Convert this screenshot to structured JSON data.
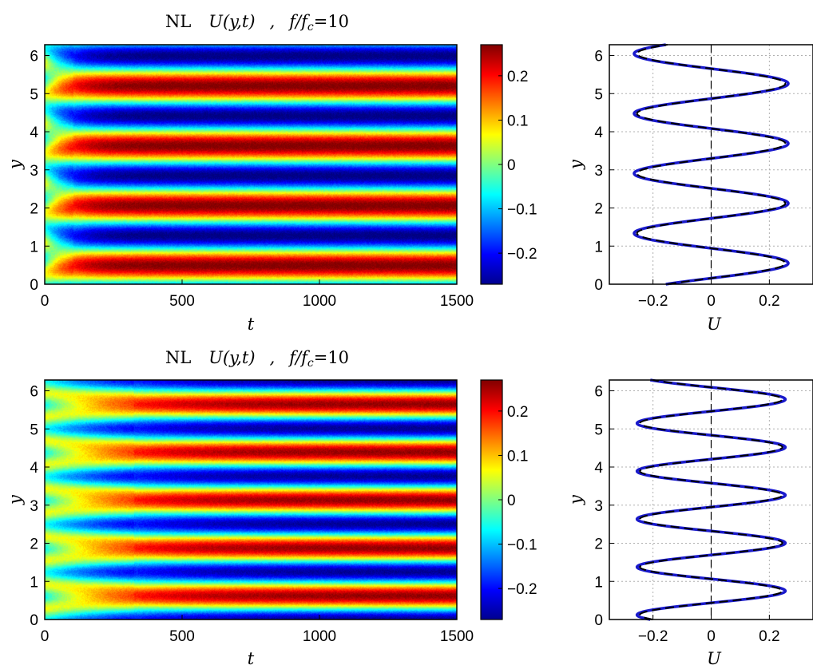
{
  "chart_data": [
    {
      "type": "heatmap",
      "title_prefix": "NL",
      "title": "U(y,t)",
      "title_sep": ",",
      "title_param": "f/f",
      "title_param_sub": "c",
      "title_value": "=10",
      "xlabel": "t",
      "ylabel": "y",
      "xlim": [
        0,
        1500
      ],
      "ylim": [
        0,
        6.2832
      ],
      "xticks": [
        "0",
        "500",
        "1000",
        "1500"
      ],
      "yticks": [
        "0",
        "1",
        "2",
        "3",
        "4",
        "5",
        "6"
      ],
      "colorbar": {
        "clim": [
          -0.27,
          0.27
        ],
        "ticks": [
          "0.2",
          "0.1",
          "0",
          "−0.1",
          "−0.2"
        ],
        "tick_values": [
          0.2,
          0.1,
          0,
          -0.1,
          -0.2
        ],
        "colormap": "jet"
      },
      "field": {
        "modes": 4,
        "amplitude": 0.27,
        "phase_peak_y": 0.5,
        "transient_end_t": 80
      }
    },
    {
      "type": "line",
      "xlabel": "U",
      "ylabel": "y",
      "xlim": [
        -0.35,
        0.35
      ],
      "ylim": [
        0,
        6.2832
      ],
      "xticks": [
        "−0.2",
        "0",
        "0.2"
      ],
      "yticks": [
        "0",
        "1",
        "2",
        "3",
        "4",
        "5",
        "6"
      ],
      "grid": true,
      "series": [
        {
          "style": "solid",
          "color": "#1a1acc",
          "amplitude": 0.265,
          "modes": 4,
          "peak_y": 0.55
        },
        {
          "style": "dashed",
          "color": "#000000",
          "amplitude": 0.255,
          "modes": 4,
          "peak_y": 0.55
        }
      ]
    },
    {
      "type": "heatmap",
      "title_prefix": "NL",
      "title": "U(y,t)",
      "title_sep": ",",
      "title_param": "f/f",
      "title_param_sub": "c",
      "title_value": "=10",
      "xlabel": "t",
      "ylabel": "y",
      "xlim": [
        0,
        1500
      ],
      "ylim": [
        0,
        6.2832
      ],
      "xticks": [
        "0",
        "500",
        "1000",
        "1500"
      ],
      "yticks": [
        "0",
        "1",
        "2",
        "3",
        "4",
        "5",
        "6"
      ],
      "colorbar": {
        "clim": [
          -0.27,
          0.27
        ],
        "ticks": [
          "0.2",
          "0.1",
          "0",
          "−0.1",
          "−0.2"
        ],
        "tick_values": [
          0.2,
          0.1,
          0,
          -0.1,
          -0.2
        ],
        "colormap": "jet"
      },
      "field": {
        "modes": 5,
        "amplitude": 0.26,
        "phase_peak_y": 0.63,
        "transient_end_t": 250
      }
    },
    {
      "type": "line",
      "xlabel": "U",
      "ylabel": "y",
      "xlim": [
        -0.35,
        0.35
      ],
      "ylim": [
        0,
        6.2832
      ],
      "xticks": [
        "−0.2",
        "0",
        "0.2"
      ],
      "yticks": [
        "0",
        "1",
        "2",
        "3",
        "4",
        "5",
        "6"
      ],
      "grid": true,
      "series": [
        {
          "style": "solid",
          "color": "#1a1acc",
          "amplitude": 0.255,
          "modes": 5,
          "peak_y": 0.75
        },
        {
          "style": "dashed",
          "color": "#000000",
          "amplitude": 0.245,
          "modes": 5,
          "peak_y": 0.75
        }
      ]
    }
  ]
}
